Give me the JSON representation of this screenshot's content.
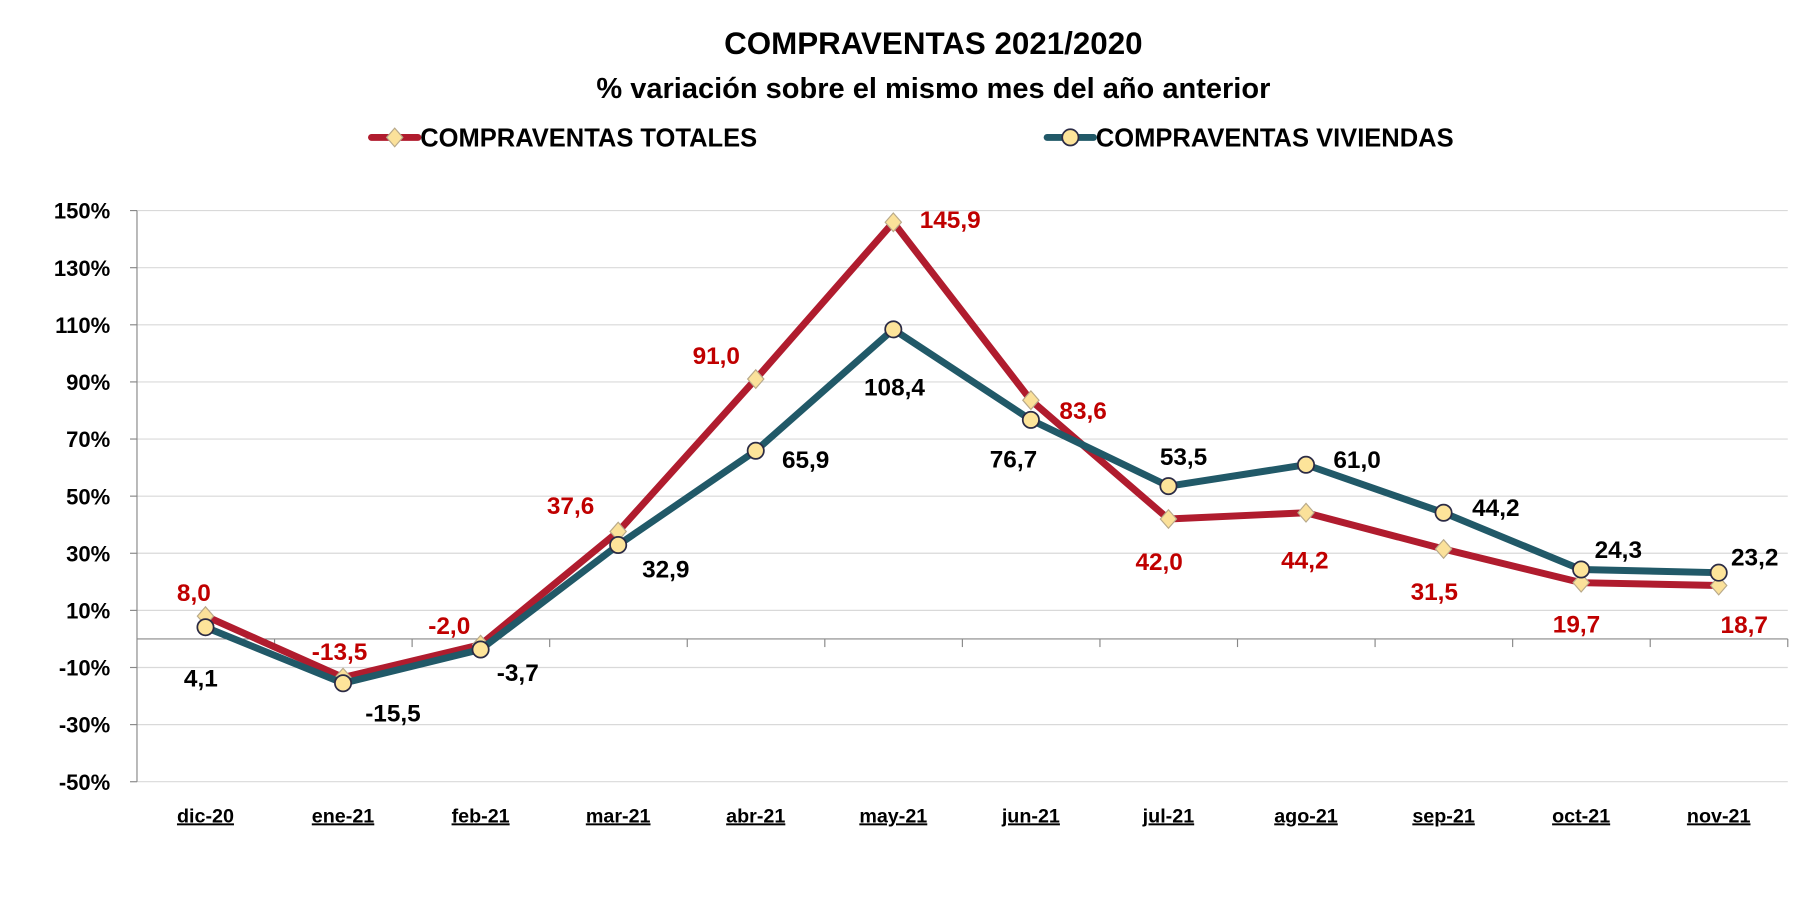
{
  "chart_data": {
    "type": "line",
    "title": "COMPRAVENTAS 2021/2020",
    "subtitle": "% variación sobre el mismo mes del año anterior",
    "xlabel": "",
    "ylabel": "",
    "categories": [
      "dic-20",
      "ene-21",
      "feb-21",
      "mar-21",
      "abr-21",
      "may-21",
      "jun-21",
      "jul-21",
      "ago-21",
      "sep-21",
      "oct-21",
      "nov-21"
    ],
    "yticks": [
      "150%",
      "130%",
      "110%",
      "90%",
      "70%",
      "50%",
      "30%",
      "10%",
      "-10%",
      "-30%",
      "-50%"
    ],
    "ytick_values": [
      150,
      130,
      110,
      90,
      70,
      50,
      30,
      10,
      -10,
      -30,
      -50
    ],
    "ylim": [
      -50,
      150
    ],
    "grid": true,
    "legend_position": "top",
    "series": [
      {
        "name": "COMPRAVENTAS TOTALES",
        "color": "#b01c2e",
        "label_color": "#c00000",
        "marker": "diamond",
        "marker_color": "#fbe19a",
        "values": [
          8.0,
          -13.5,
          -2.0,
          37.6,
          91.0,
          145.9,
          83.6,
          42.0,
          44.2,
          31.5,
          19.7,
          18.7
        ],
        "labels": [
          "8,0",
          "-13,5",
          "-2,0",
          "37,6",
          "91,0",
          "145,9",
          "83,6",
          "42,0",
          "44,2",
          "31,5",
          "19,7",
          "18,7"
        ]
      },
      {
        "name": "COMPRAVENTAS VIVIENDAS",
        "color": "#215968",
        "label_color": "#000000",
        "marker": "circle",
        "marker_color": "#fde49a",
        "values": [
          4.1,
          -15.5,
          -3.7,
          32.9,
          65.9,
          108.4,
          76.7,
          53.5,
          61.0,
          44.2,
          24.3,
          23.2
        ],
        "labels": [
          "4,1",
          "-15,5",
          "-3,7",
          "32,9",
          "65,9",
          "108,4",
          "76,7",
          "53,5",
          "61,0",
          "44,2",
          "24,3",
          "23,2"
        ]
      }
    ]
  }
}
